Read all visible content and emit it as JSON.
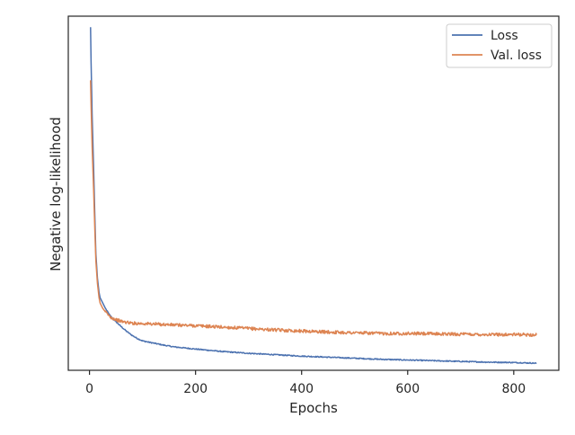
{
  "chart_data": {
    "type": "line",
    "title": "",
    "xlabel": "Epochs",
    "ylabel": "Negative log-likelihood",
    "xlim": [
      -40,
      885
    ],
    "ylim": [
      0,
      1
    ],
    "y_ticks_shown": false,
    "grid": false,
    "legend_position": "top-right",
    "x_ticks": [
      0,
      200,
      400,
      600,
      800
    ],
    "x_tick_labels": [
      "0",
      "200",
      "400",
      "600",
      "800"
    ],
    "series": [
      {
        "name": "Loss",
        "color": "#4c72b0",
        "x": [
          2,
          3,
          5,
          8,
          10,
          12,
          15,
          18,
          20,
          25,
          30,
          35,
          40,
          50,
          60,
          70,
          80,
          90,
          100,
          120,
          140,
          160,
          180,
          200,
          250,
          300,
          350,
          400,
          450,
          500,
          550,
          600,
          650,
          700,
          750,
          800,
          843
        ],
        "y": [
          0.969,
          0.87,
          0.72,
          0.56,
          0.44,
          0.33,
          0.26,
          0.22,
          0.205,
          0.19,
          0.175,
          0.163,
          0.152,
          0.137,
          0.123,
          0.11,
          0.099,
          0.09,
          0.083,
          0.077,
          0.071,
          0.066,
          0.063,
          0.06,
          0.053,
          0.048,
          0.044,
          0.04,
          0.037,
          0.034,
          0.031,
          0.029,
          0.027,
          0.025,
          0.023,
          0.022,
          0.02
        ]
      },
      {
        "name": "Val. loss",
        "color": "#dd8452",
        "x": [
          2,
          3,
          5,
          8,
          10,
          12,
          15,
          18,
          20,
          25,
          30,
          35,
          40,
          50,
          60,
          80,
          100,
          130,
          160,
          200,
          250,
          300,
          350,
          400,
          450,
          500,
          550,
          600,
          650,
          700,
          750,
          800,
          843
        ],
        "y": [
          0.819,
          0.75,
          0.63,
          0.5,
          0.4,
          0.31,
          0.245,
          0.205,
          0.19,
          0.175,
          0.165,
          0.157,
          0.15,
          0.143,
          0.138,
          0.133,
          0.132,
          0.13,
          0.128,
          0.126,
          0.122,
          0.118,
          0.114,
          0.111,
          0.108,
          0.106,
          0.104,
          0.104,
          0.103,
          0.102,
          0.101,
          0.101,
          0.1
        ]
      }
    ]
  }
}
